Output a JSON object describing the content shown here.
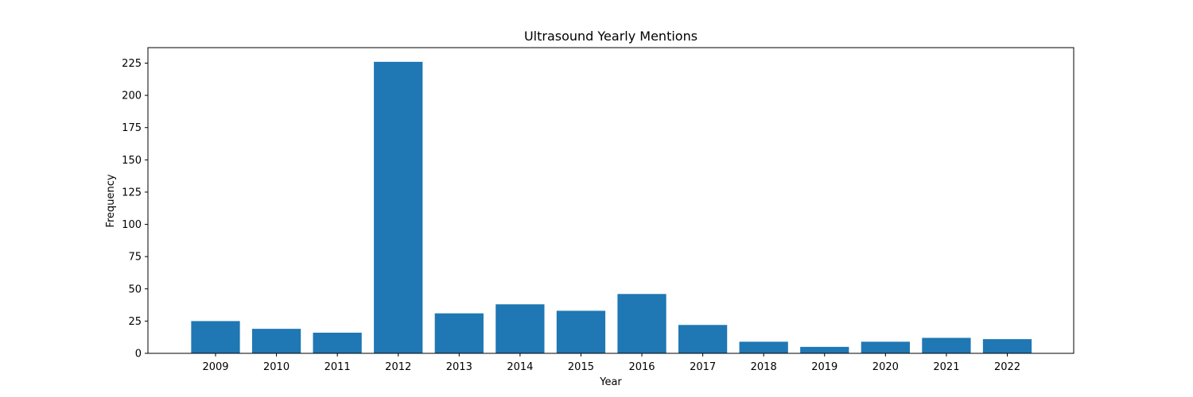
{
  "chart_data": {
    "type": "bar",
    "title": "Ultrasound Yearly Mentions",
    "xlabel": "Year",
    "ylabel": "Frequency",
    "categories": [
      "2009",
      "2010",
      "2011",
      "2012",
      "2013",
      "2014",
      "2015",
      "2016",
      "2017",
      "2018",
      "2019",
      "2020",
      "2021",
      "2022"
    ],
    "values": [
      25,
      19,
      16,
      226,
      31,
      38,
      33,
      46,
      22,
      9,
      5,
      9,
      12,
      11
    ],
    "ylim": [
      0,
      237
    ],
    "yticks": [
      0,
      25,
      50,
      75,
      100,
      125,
      150,
      175,
      200,
      225
    ],
    "grid": false,
    "bar_color": "#1f77b4"
  }
}
